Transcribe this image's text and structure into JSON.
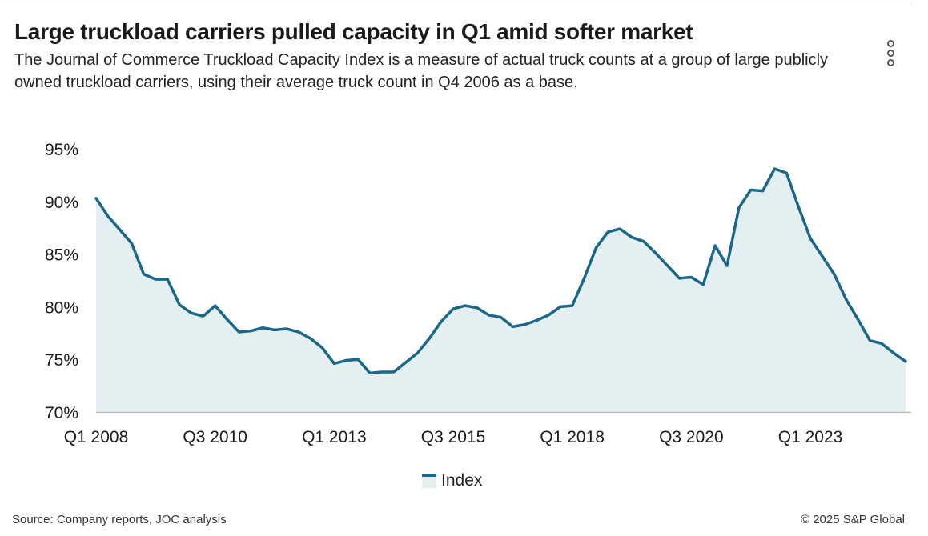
{
  "header": {
    "title": "Large truckload carriers pulled capacity in Q1 amid softer market",
    "subtitle": "The Journal of Commerce Truckload Capacity Index is a measure of actual truck counts at a group of large publicly owned truckload carriers, using their average truck count in Q4 2006 as a base."
  },
  "menu": {
    "icon": "vertical-ellipsis-icon"
  },
  "legend": {
    "label": "Index"
  },
  "footer": {
    "source": "Source: Company reports, JOC analysis",
    "copyright": "© 2025 S&P Global"
  },
  "colors": {
    "line": "#1b6788",
    "area": "#e4eff2",
    "axis": "#bdbdbd"
  },
  "chart_data": {
    "type": "area",
    "title": "Large truckload carriers pulled capacity in Q1 amid softer market",
    "xlabel": "",
    "ylabel": "",
    "ylim": [
      70,
      95
    ],
    "yticks": [
      70,
      75,
      80,
      85,
      90,
      95
    ],
    "ytick_labels": [
      "70%",
      "75%",
      "80%",
      "85%",
      "90%",
      "95%"
    ],
    "xtick_labels": [
      "Q1 2008",
      "Q3 2010",
      "Q1 2013",
      "Q3 2015",
      "Q1 2018",
      "Q3 2020",
      "Q1 2023"
    ],
    "xtick_indices": [
      0,
      10,
      20,
      30,
      40,
      50,
      60
    ],
    "grid": false,
    "legend_position": "bottom-center",
    "series": [
      {
        "name": "Index",
        "values": [
          90.3,
          88.6,
          87.3,
          86.0,
          83.1,
          82.6,
          82.6,
          80.2,
          79.4,
          79.1,
          80.1,
          78.8,
          77.6,
          77.7,
          78.0,
          77.8,
          77.9,
          77.6,
          77.0,
          76.1,
          74.6,
          74.9,
          75.0,
          73.7,
          73.8,
          73.8,
          74.7,
          75.6,
          77.0,
          78.6,
          79.8,
          80.1,
          79.9,
          79.2,
          79.0,
          78.1,
          78.3,
          78.7,
          79.2,
          80.0,
          80.1,
          82.7,
          85.6,
          87.1,
          87.4,
          86.6,
          86.2,
          85.1,
          83.9,
          82.7,
          82.8,
          82.1,
          85.8,
          83.9,
          89.4,
          91.1,
          91.0,
          93.1,
          92.7,
          89.5,
          86.5,
          84.8,
          83.1,
          80.7,
          78.8,
          76.8,
          76.5,
          75.6,
          74.8
        ]
      }
    ]
  }
}
